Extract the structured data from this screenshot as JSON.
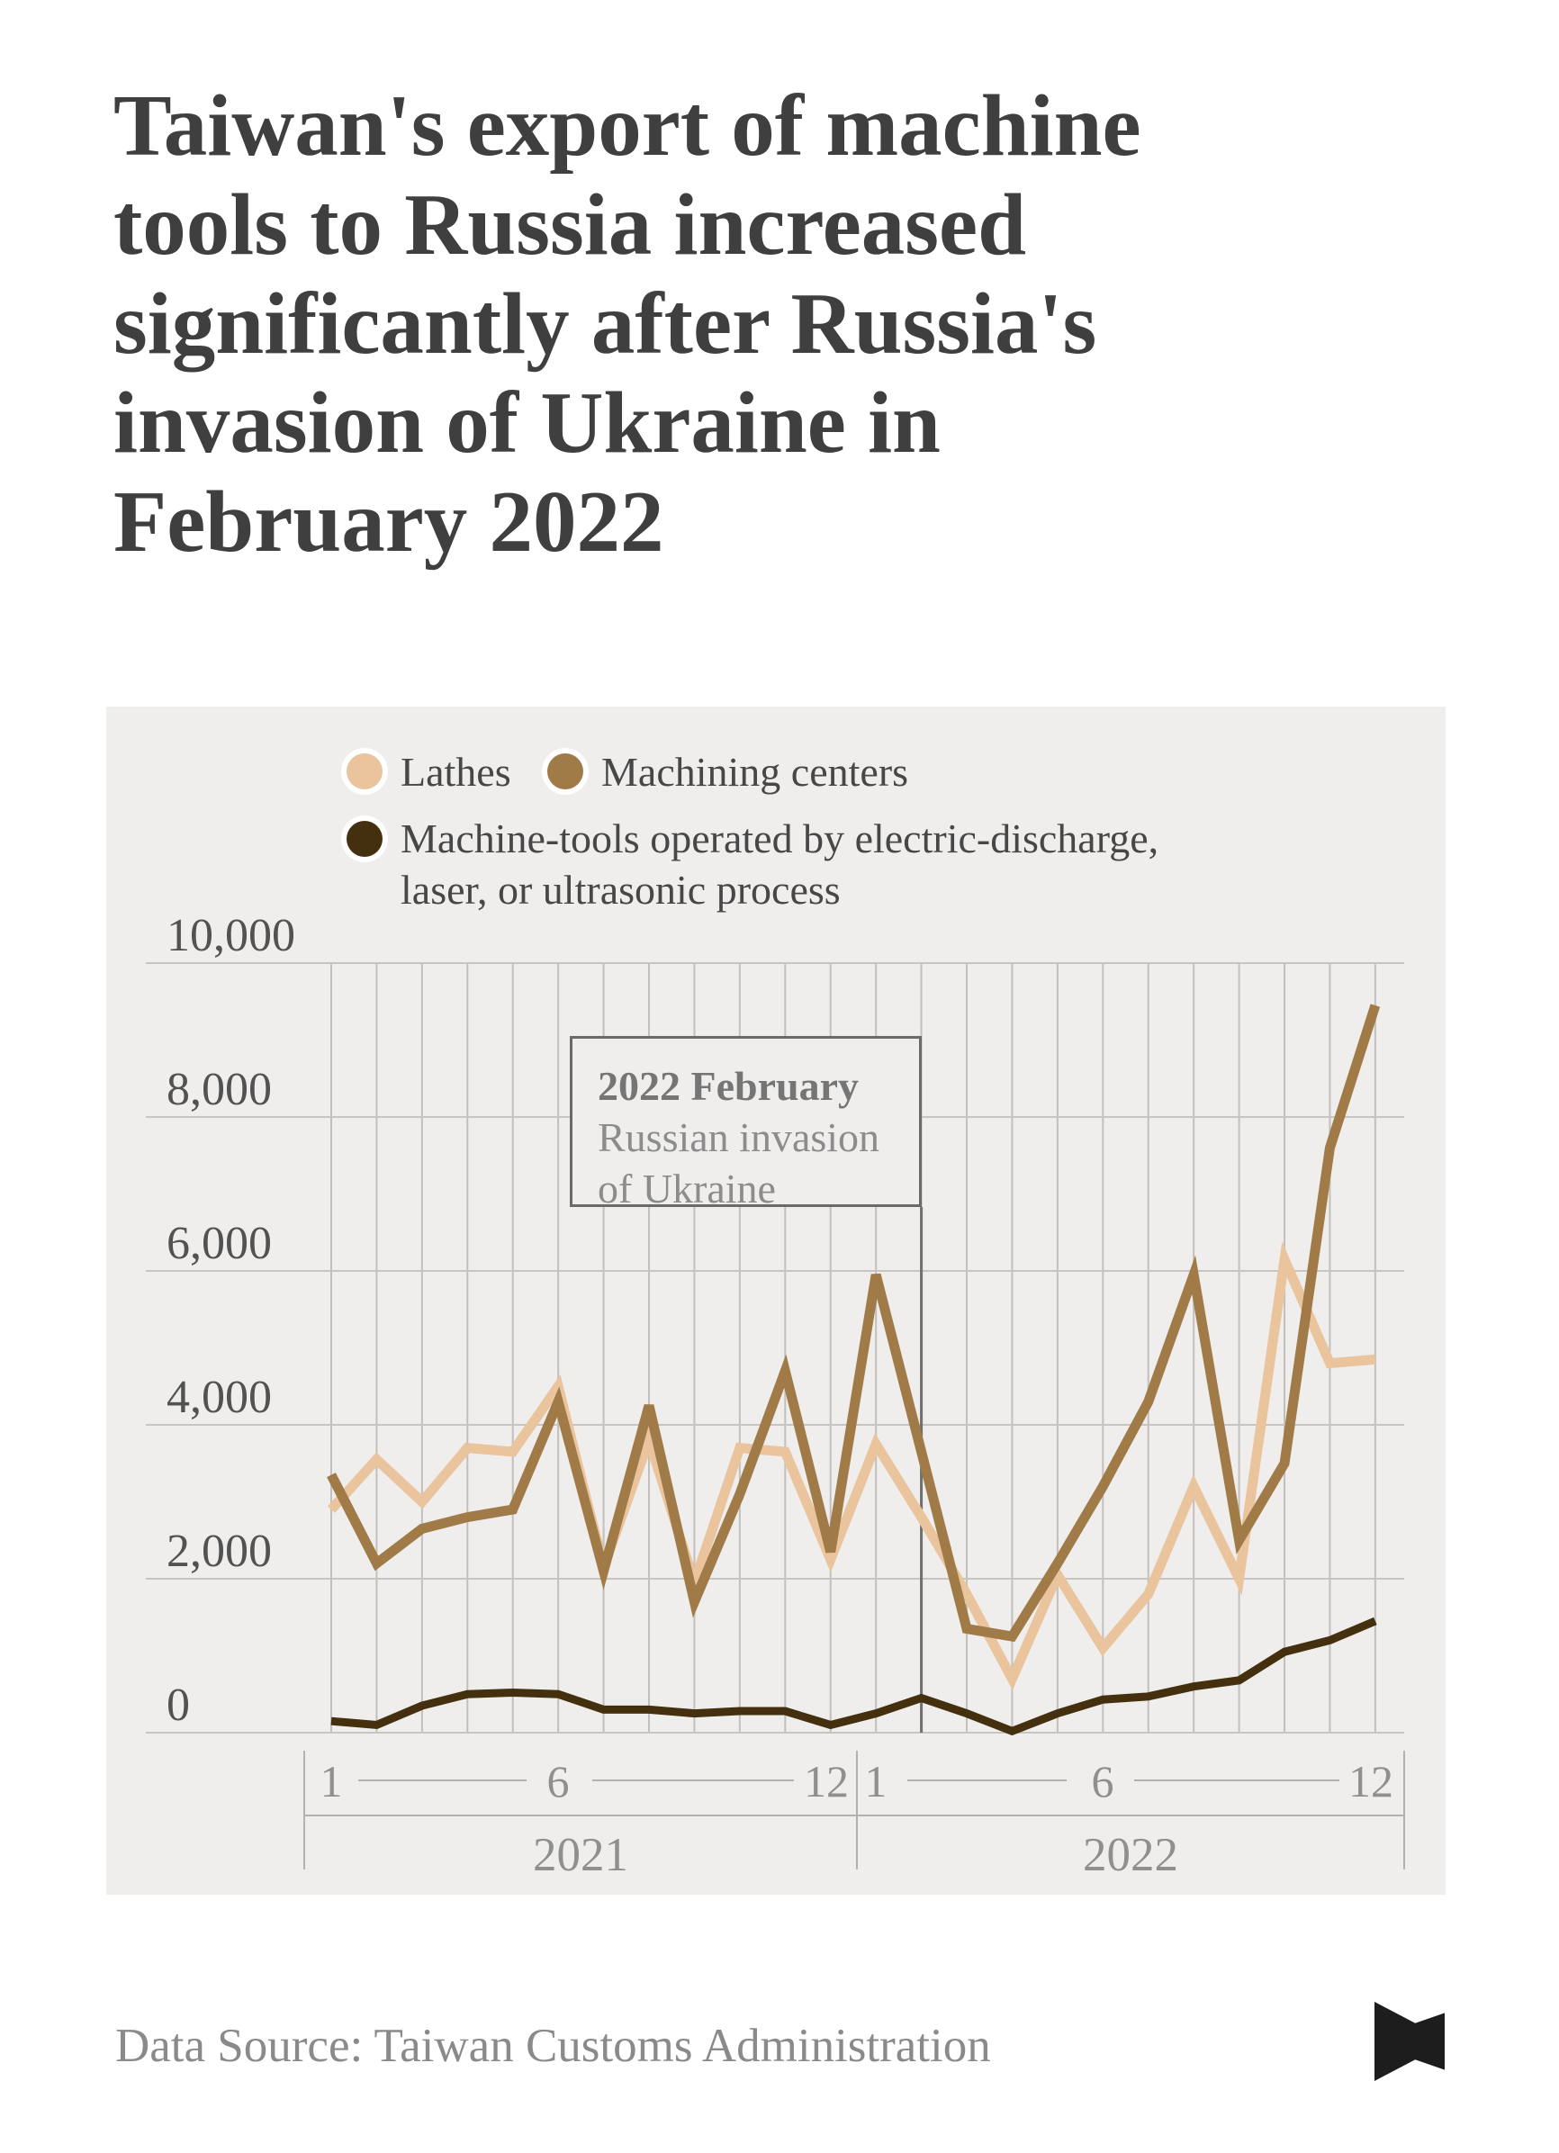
{
  "title": {
    "lines": [
      "Taiwan's export of machine",
      "tools to Russia increased",
      "significantly after Russia's",
      "invasion of Ukraine in",
      "February 2022"
    ]
  },
  "legend": {
    "items": [
      {
        "label": "Lathes",
        "color": "#e9c49d"
      },
      {
        "label": "Machining centers",
        "color": "#a07a47"
      },
      {
        "label": "Machine-tools operated by electric-discharge, laser, or ultrasonic process",
        "label_line1": "Machine-tools operated by electric-discharge,",
        "label_line2": "laser, or ultrasonic process",
        "color": "#44300e"
      }
    ]
  },
  "chart_data": {
    "type": "line",
    "x_months": [
      1,
      2,
      3,
      4,
      5,
      6,
      7,
      8,
      9,
      10,
      11,
      12,
      1,
      2,
      3,
      4,
      5,
      6,
      7,
      8,
      9,
      10,
      11,
      12
    ],
    "x_axis": {
      "tick_labels": [
        "1",
        "6",
        "12",
        "1",
        "6",
        "12"
      ],
      "tick_month_indices": [
        0,
        5,
        11,
        12,
        17,
        23
      ],
      "year_labels": [
        "2021",
        "2022"
      ]
    },
    "y_ticks": [
      "10,000",
      "8,000",
      "6,000",
      "4,000",
      "2,000",
      "0"
    ],
    "ylim": [
      0,
      10000
    ],
    "grid": "both",
    "series": [
      {
        "name": "Lathes",
        "color": "#e9c49d",
        "values": [
          2900,
          3550,
          3000,
          3700,
          3650,
          4500,
          2150,
          3800,
          1950,
          3700,
          3650,
          2250,
          3750,
          2800,
          1800,
          700,
          2050,
          1100,
          1800,
          3200,
          2000,
          6150,
          4800,
          4850
        ]
      },
      {
        "name": "Machining centers",
        "color": "#a07a47",
        "values": [
          3350,
          2200,
          2650,
          2800,
          2900,
          4300,
          2100,
          4250,
          1700,
          3100,
          4700,
          2350,
          5950,
          3650,
          1350,
          1250,
          2200,
          3200,
          4300,
          5950,
          2500,
          3500,
          7600,
          9450
        ]
      },
      {
        "name": "Machine-tools operated by electric-discharge, laser, or ultrasonic process",
        "color": "#44300e",
        "values": [
          150,
          100,
          350,
          500,
          520,
          500,
          300,
          300,
          250,
          280,
          280,
          100,
          250,
          450,
          250,
          20,
          250,
          430,
          470,
          600,
          680,
          1050,
          1200,
          1450
        ]
      }
    ],
    "annotation": {
      "title": "2022 February",
      "body_line1": "Russian invasion",
      "body_line2": "of Ukraine",
      "marker": "2022-02"
    }
  },
  "footer": {
    "source": "Data Source: Taiwan Customs Administration"
  },
  "logo": {
    "name": "initium-flag-logo",
    "color": "#1d1d1d"
  }
}
